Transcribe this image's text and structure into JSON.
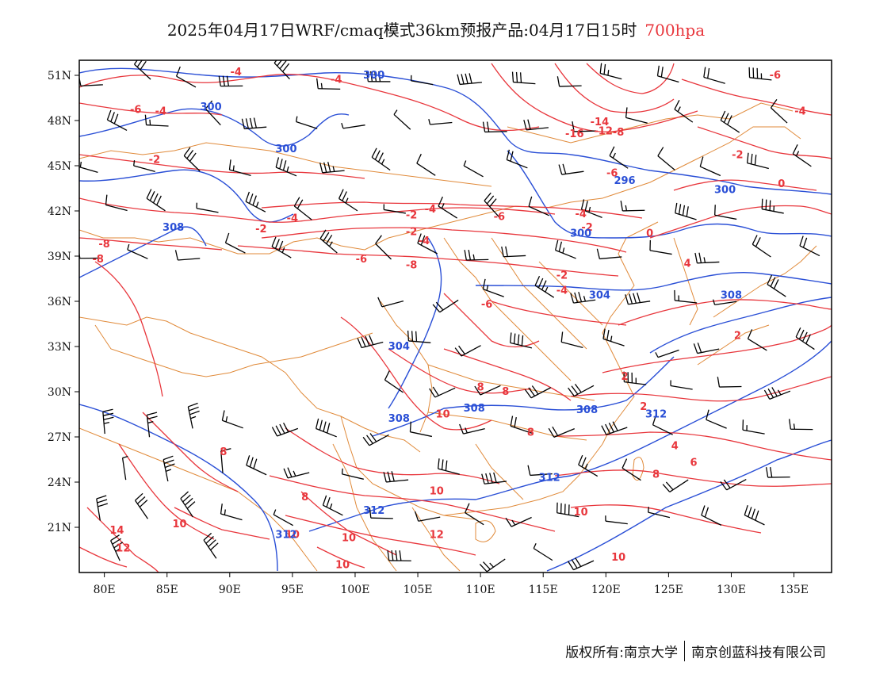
{
  "title": {
    "main": "2025年04月17日WRF/cmaq模式36km预报产品:04月17日15时",
    "level": "700hpa",
    "level_color": "#e8363c"
  },
  "map": {
    "projection": "lat-lon",
    "lon_range": [
      78,
      138
    ],
    "lat_range": [
      18,
      52
    ],
    "x_ticks": [
      "80E",
      "85E",
      "90E",
      "95E",
      "100E",
      "105E",
      "110E",
      "115E",
      "120E",
      "125E",
      "130E",
      "135E"
    ],
    "y_ticks": [
      "51N",
      "48N",
      "45N",
      "42N",
      "39N",
      "36N",
      "33N",
      "30N",
      "27N",
      "24N",
      "21N"
    ],
    "layers": {
      "temperature_contours": {
        "color": "#e8363c",
        "unit": "°C"
      },
      "geopotential_contours": {
        "color": "#2a4fd6",
        "unit": "dagpm"
      },
      "boundaries": {
        "color": "#e08a3a"
      },
      "wind_barbs": {
        "color": "#000000"
      }
    },
    "red_labels": [
      {
        "text": "-4",
        "lon": 90.5,
        "lat": 51.2
      },
      {
        "text": "-4",
        "lon": 98.5,
        "lat": 50.7
      },
      {
        "text": "-6",
        "lon": 82.5,
        "lat": 48.7
      },
      {
        "text": "-4",
        "lon": 84.5,
        "lat": 48.6
      },
      {
        "text": "-2",
        "lon": 84.0,
        "lat": 45.4
      },
      {
        "text": "-4",
        "lon": 95.0,
        "lat": 41.5
      },
      {
        "text": "-2",
        "lon": 92.5,
        "lat": 40.8
      },
      {
        "text": "-2",
        "lon": 104.5,
        "lat": 41.7
      },
      {
        "text": "-4",
        "lon": 106.0,
        "lat": 42.1
      },
      {
        "text": "-6",
        "lon": 111.5,
        "lat": 41.6
      },
      {
        "text": "-2",
        "lon": 104.5,
        "lat": 40.6
      },
      {
        "text": "-4",
        "lon": 105.5,
        "lat": 40.0
      },
      {
        "text": "-8",
        "lon": 80.0,
        "lat": 39.8
      },
      {
        "text": "-8",
        "lon": 79.5,
        "lat": 38.8
      },
      {
        "text": "-6",
        "lon": 100.5,
        "lat": 38.8
      },
      {
        "text": "-8",
        "lon": 104.5,
        "lat": 38.4
      },
      {
        "text": "-6",
        "lon": 110.5,
        "lat": 35.8
      },
      {
        "text": "-14",
        "lon": 119.5,
        "lat": 47.9
      },
      {
        "text": "-16",
        "lon": 117.5,
        "lat": 47.1
      },
      {
        "text": "-12",
        "lon": 119.8,
        "lat": 47.3
      },
      {
        "text": "-8",
        "lon": 121.0,
        "lat": 47.2
      },
      {
        "text": "-6",
        "lon": 120.5,
        "lat": 44.5
      },
      {
        "text": "-4",
        "lon": 118.0,
        "lat": 41.8
      },
      {
        "text": "-2",
        "lon": 118.5,
        "lat": 40.9
      },
      {
        "text": "0",
        "lon": 123.5,
        "lat": 40.5
      },
      {
        "text": "-2",
        "lon": 116.5,
        "lat": 37.7
      },
      {
        "text": "-4",
        "lon": 116.5,
        "lat": 36.7
      },
      {
        "text": "-6",
        "lon": 133.5,
        "lat": 51.0
      },
      {
        "text": "-4",
        "lon": 135.5,
        "lat": 48.6
      },
      {
        "text": "-2",
        "lon": 130.5,
        "lat": 45.7
      },
      {
        "text": "0",
        "lon": 134.0,
        "lat": 43.8
      },
      {
        "text": "4",
        "lon": 126.5,
        "lat": 38.5
      },
      {
        "text": "2",
        "lon": 130.5,
        "lat": 33.7
      },
      {
        "text": "2",
        "lon": 121.5,
        "lat": 31.0
      },
      {
        "text": "2",
        "lon": 123.0,
        "lat": 29.0
      },
      {
        "text": "4",
        "lon": 125.5,
        "lat": 26.4
      },
      {
        "text": "6",
        "lon": 127.0,
        "lat": 25.3
      },
      {
        "text": "8",
        "lon": 124.0,
        "lat": 24.5
      },
      {
        "text": "8",
        "lon": 110.0,
        "lat": 30.3
      },
      {
        "text": "8",
        "lon": 112.0,
        "lat": 30.0
      },
      {
        "text": "8",
        "lon": 114.0,
        "lat": 27.3
      },
      {
        "text": "10",
        "lon": 107.0,
        "lat": 28.5
      },
      {
        "text": "8",
        "lon": 89.5,
        "lat": 26.0
      },
      {
        "text": "8",
        "lon": 96.0,
        "lat": 23.0
      },
      {
        "text": "10",
        "lon": 106.5,
        "lat": 23.4
      },
      {
        "text": "10",
        "lon": 86.0,
        "lat": 21.2
      },
      {
        "text": "10",
        "lon": 95.0,
        "lat": 20.5
      },
      {
        "text": "10",
        "lon": 99.5,
        "lat": 20.3
      },
      {
        "text": "12",
        "lon": 106.5,
        "lat": 20.5
      },
      {
        "text": "10",
        "lon": 118.0,
        "lat": 22.0
      },
      {
        "text": "14",
        "lon": 81.0,
        "lat": 20.8
      },
      {
        "text": "12",
        "lon": 81.5,
        "lat": 19.6
      },
      {
        "text": "10",
        "lon": 99.0,
        "lat": 18.5
      },
      {
        "text": "10",
        "lon": 121.0,
        "lat": 19.0
      }
    ],
    "blue_labels": [
      {
        "text": "300",
        "lon": 101.5,
        "lat": 51.0
      },
      {
        "text": "300",
        "lon": 88.5,
        "lat": 48.9
      },
      {
        "text": "300",
        "lon": 94.5,
        "lat": 46.1
      },
      {
        "text": "296",
        "lon": 121.5,
        "lat": 44.0
      },
      {
        "text": "300",
        "lon": 129.5,
        "lat": 43.4
      },
      {
        "text": "308",
        "lon": 85.5,
        "lat": 40.9
      },
      {
        "text": "300",
        "lon": 118.0,
        "lat": 40.5
      },
      {
        "text": "304",
        "lon": 119.5,
        "lat": 36.4
      },
      {
        "text": "308",
        "lon": 130.0,
        "lat": 36.4
      },
      {
        "text": "304",
        "lon": 103.5,
        "lat": 33.0
      },
      {
        "text": "308",
        "lon": 103.5,
        "lat": 28.2
      },
      {
        "text": "308",
        "lon": 109.5,
        "lat": 28.9
      },
      {
        "text": "308",
        "lon": 118.5,
        "lat": 28.8
      },
      {
        "text": "312",
        "lon": 124.0,
        "lat": 28.5
      },
      {
        "text": "312",
        "lon": 115.5,
        "lat": 24.3
      },
      {
        "text": "312",
        "lon": 101.5,
        "lat": 22.1
      },
      {
        "text": "312",
        "lon": 94.5,
        "lat": 20.5
      }
    ]
  },
  "footer": {
    "left": "版权所有:南京大学",
    "right": "南京创蓝科技有限公司"
  }
}
